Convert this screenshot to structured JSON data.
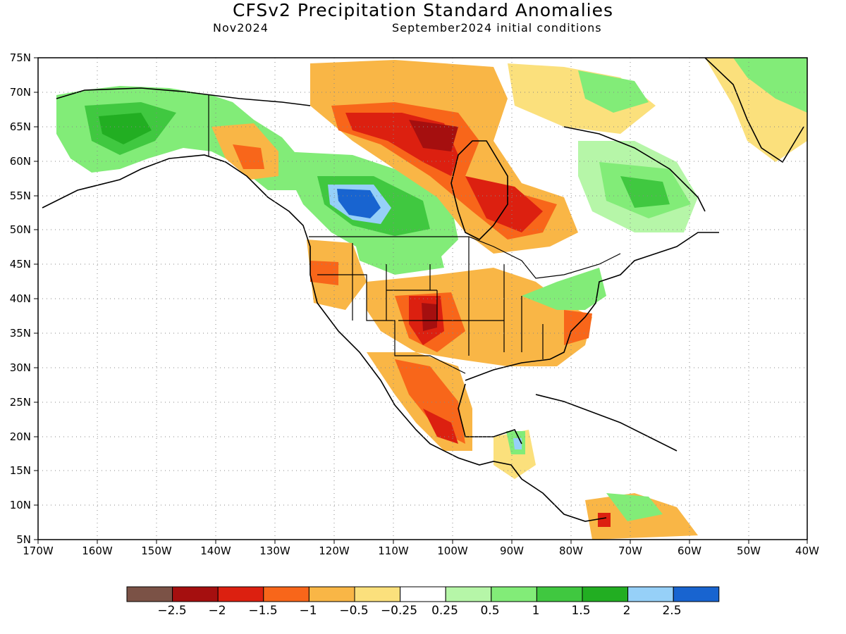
{
  "title": "CFSv2 Precipitation Standard Anomalies",
  "subtitle_left": "Nov2024",
  "subtitle_right": "September2024 initial conditions",
  "lat_labels": [
    "75N",
    "70N",
    "65N",
    "60N",
    "55N",
    "50N",
    "45N",
    "40N",
    "35N",
    "30N",
    "25N",
    "20N",
    "15N",
    "10N",
    "5N"
  ],
  "lon_labels": [
    "170W",
    "160W",
    "150W",
    "140W",
    "130W",
    "120W",
    "110W",
    "100W",
    "90W",
    "80W",
    "70W",
    "60W",
    "50W",
    "40W"
  ],
  "colorbar": {
    "colors": [
      "#7b5246",
      "#a50f0f",
      "#dc2010",
      "#f8661a",
      "#f9b646",
      "#fbe07c",
      "#ffffff",
      "#b6f6a8",
      "#82ec78",
      "#40c840",
      "#22ae22",
      "#96d0f8",
      "#1864d0"
    ],
    "labels": [
      "−2.5",
      "−2",
      "−1.5",
      "−1",
      "−0.5",
      "−0.25",
      "0.25",
      "0.5",
      "1",
      "1.5",
      "2",
      "2.5"
    ]
  },
  "map": {
    "lon_range": [
      -170,
      -40
    ],
    "lat_range": [
      5,
      75
    ],
    "anomaly_regions": [
      {
        "name": "alaska-wet",
        "color": "#82ec78"
      },
      {
        "name": "western-canada-wet-core",
        "color": "#1864d0"
      },
      {
        "name": "hudson-bay-dry",
        "color": "#dc2010"
      },
      {
        "name": "southern-plains-dry",
        "color": "#a50f0f"
      },
      {
        "name": "mexico-dry",
        "color": "#f8661a"
      },
      {
        "name": "greenland-wet",
        "color": "#82ec78"
      },
      {
        "name": "labrador-wet",
        "color": "#40c840"
      }
    ]
  }
}
